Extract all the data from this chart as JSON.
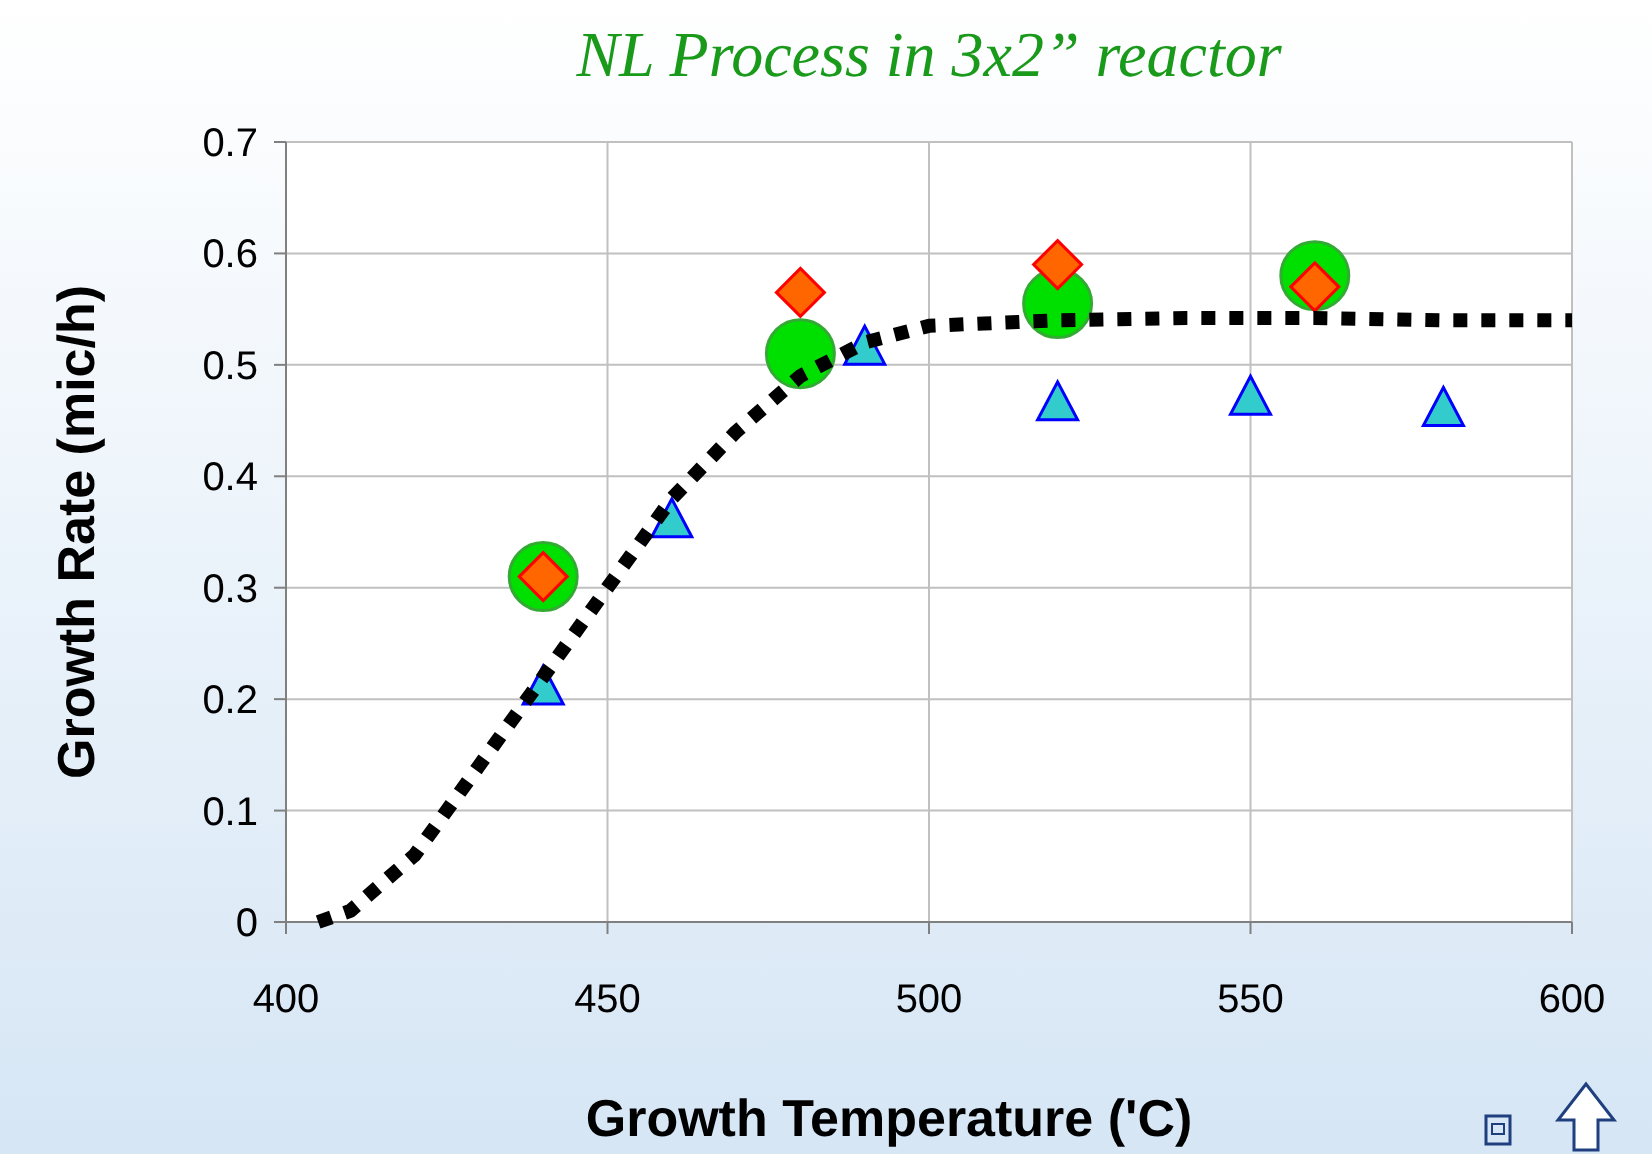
{
  "chart_data": {
    "type": "scatter",
    "title": "NL Process in 3x2” reactor",
    "xlabel": "Growth Temperature ('C)",
    "ylabel": "Growth Rate (mic/h)",
    "xlim": [
      400,
      600
    ],
    "xticks": [
      400,
      450,
      500,
      550,
      600
    ],
    "ylim": [
      0,
      0.7
    ],
    "yticks": [
      0,
      0.1,
      0.2,
      0.3,
      0.4,
      0.5,
      0.6,
      0.7
    ],
    "grid": true,
    "series": [
      {
        "type": "line",
        "line_style": "dotted",
        "marker": "none",
        "color": "#000000",
        "x": [
          405,
          410,
          420,
          430,
          440,
          450,
          460,
          470,
          480,
          490,
          500,
          520,
          540,
          560,
          580,
          600
        ],
        "values": [
          0,
          0.01,
          0.06,
          0.14,
          0.22,
          0.3,
          0.38,
          0.44,
          0.49,
          0.52,
          0.535,
          0.54,
          0.542,
          0.542,
          0.54,
          0.54
        ]
      },
      {
        "marker": "circle",
        "color": "#00e000",
        "x": [
          440,
          480,
          520,
          560
        ],
        "values": [
          0.31,
          0.51,
          0.555,
          0.58
        ]
      },
      {
        "marker": "diamond",
        "color": "#ff6600",
        "x": [
          440,
          480,
          520,
          560
        ],
        "values": [
          0.31,
          0.565,
          0.59,
          0.57
        ]
      },
      {
        "marker": "triangle",
        "color": "#33cccc",
        "x": [
          440,
          460,
          490,
          520,
          550,
          580
        ],
        "values": [
          0.21,
          0.36,
          0.515,
          0.465,
          0.47,
          0.46
        ]
      }
    ]
  }
}
